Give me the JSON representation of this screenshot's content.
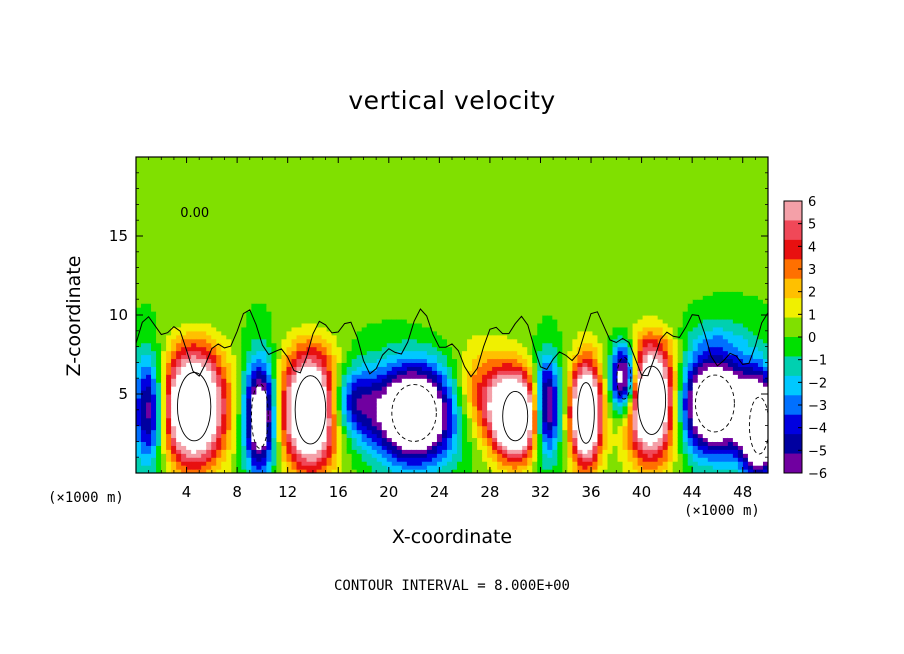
{
  "chart_data": {
    "type": "heatmap",
    "title": "vertical velocity",
    "xlabel": "X-coordinate",
    "ylabel": "Z-coordinate",
    "x_unit": "(×1000 m)",
    "y_unit": "(×1000 m)",
    "xlim": [
      0,
      50
    ],
    "ylim": [
      0,
      20
    ],
    "x_ticks": [
      "4",
      "8",
      "12",
      "16",
      "20",
      "24",
      "28",
      "32",
      "36",
      "40",
      "44",
      "48"
    ],
    "y_ticks": [
      "5",
      "10",
      "15"
    ],
    "contour_label": "0.00",
    "contour_interval_text": "CONTOUR INTERVAL = 8.000E+00",
    "colorbar": {
      "levels": [
        6,
        5,
        4,
        3,
        2,
        1,
        0,
        -1,
        -2,
        -3,
        -4,
        -5,
        -6
      ],
      "labels": [
        "6",
        "5",
        "4",
        "3",
        "2",
        "1",
        "0",
        "−1",
        "−2",
        "−3",
        "−4",
        "−5",
        "−6"
      ],
      "colors": [
        "#f4a0a8",
        "#f04858",
        "#e81010",
        "#ff7000",
        "#ffc000",
        "#f0f000",
        "#80e000",
        "#00e000",
        "#00d0b0",
        "#00c8ff",
        "#0070ff",
        "#0000e0",
        "#0000a0",
        "#7000a0"
      ]
    },
    "cells": [
      {
        "x": 4.6,
        "z": 4.2,
        "value": 12,
        "sx": 2.4,
        "sz": 3.6
      },
      {
        "x": 9.8,
        "z": 3.6,
        "value": -10,
        "sx": 1.2,
        "sz": 3.4
      },
      {
        "x": 13.8,
        "z": 4.0,
        "value": 12,
        "sx": 2.2,
        "sz": 3.6
      },
      {
        "x": 17.0,
        "z": 4.5,
        "value": -5,
        "sx": 2.0,
        "sz": 2.2
      },
      {
        "x": 22.0,
        "z": 3.8,
        "value": -12,
        "sx": 3.2,
        "sz": 3.0
      },
      {
        "x": 27.5,
        "z": 5.0,
        "value": 4,
        "sx": 2.6,
        "sz": 2.8
      },
      {
        "x": 30.0,
        "z": 3.6,
        "value": 12,
        "sx": 1.8,
        "sz": 2.6
      },
      {
        "x": 32.5,
        "z": 4.2,
        "value": -8,
        "sx": 1.0,
        "sz": 3.0
      },
      {
        "x": 35.6,
        "z": 3.8,
        "value": 12,
        "sx": 1.2,
        "sz": 3.2
      },
      {
        "x": 38.6,
        "z": 6.0,
        "value": -10,
        "sx": 1.0,
        "sz": 2.2
      },
      {
        "x": 40.8,
        "z": 4.6,
        "value": 12,
        "sx": 2.0,
        "sz": 3.6
      },
      {
        "x": 45.8,
        "z": 4.4,
        "value": -12,
        "sx": 2.8,
        "sz": 3.0
      },
      {
        "x": 49.3,
        "z": 3.0,
        "value": -12,
        "sx": 1.4,
        "sz": 3.0
      },
      {
        "x": 1.0,
        "z": 4.0,
        "value": -7,
        "sx": 1.2,
        "sz": 3.4
      },
      {
        "x": 26.0,
        "z": 12.0,
        "value": 1.2,
        "sx": 4.0,
        "sz": 3.0
      },
      {
        "x": 39.0,
        "z": 12.0,
        "value": 1.0,
        "sx": 4.0,
        "sz": 3.0
      },
      {
        "x": 46.0,
        "z": 9.0,
        "value": -1.5,
        "sx": 3.0,
        "sz": 1.5
      }
    ]
  }
}
